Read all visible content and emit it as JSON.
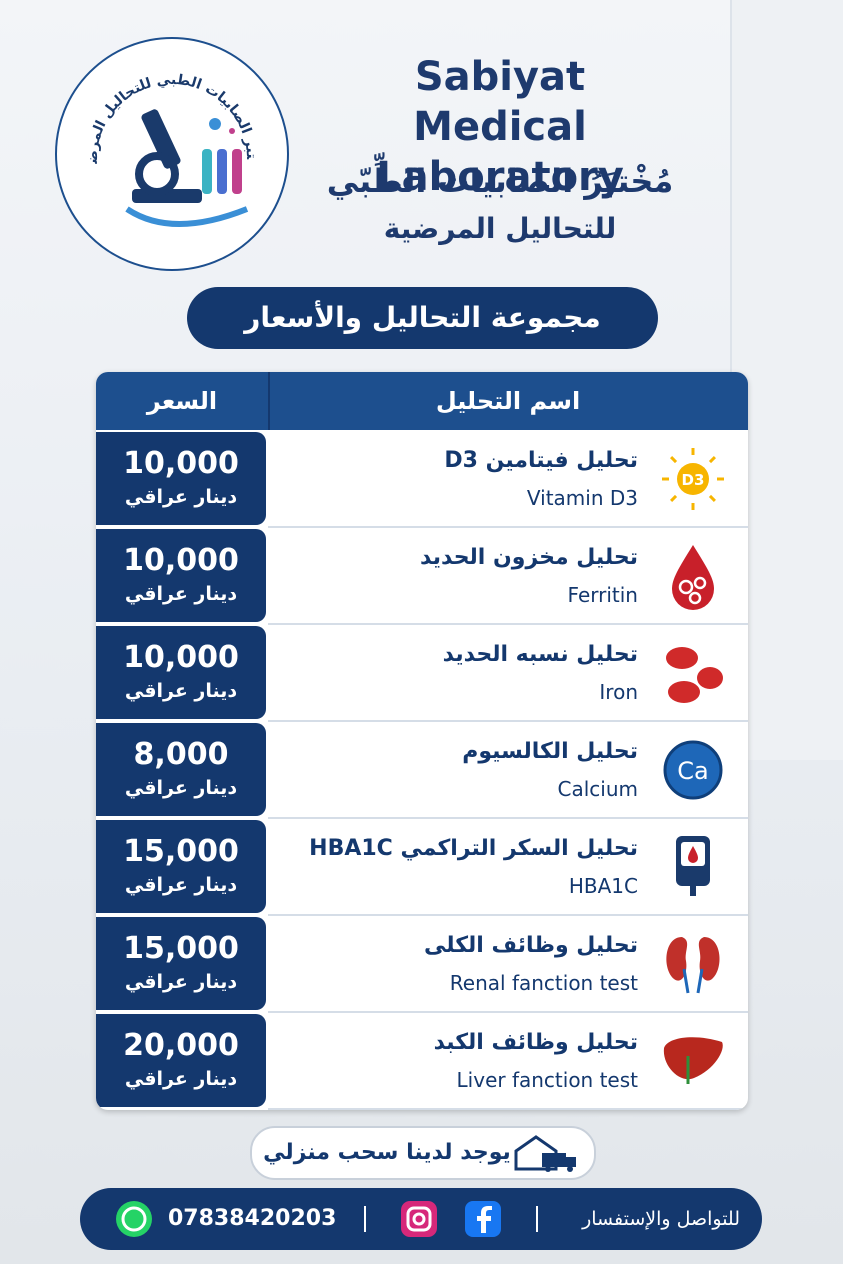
{
  "header": {
    "title_en": "Sabiyat Medical Laboratory",
    "title_ar": "مُخْتبَرُ الصابيات الطِّبّي",
    "subtitle_ar": "للتحاليل المرضية",
    "logo_text": "مختبر الصابيات الطبي للتحاليل المرضية"
  },
  "section_title": "مجموعة التحاليل والأسعار",
  "table": {
    "headers": [
      "السعر",
      "اسم التحليل"
    ],
    "rows": [
      {
        "price": "10,000",
        "currency": "دينار عراقي",
        "name_ar": "تحليل فيتامين D3",
        "name_en": "Vitamin D3",
        "icon_label": "D3"
      },
      {
        "price": "10,000",
        "currency": "دينار عراقي",
        "name_ar": "تحليل مخزون الحديد",
        "name_en": "Ferritin"
      },
      {
        "price": "10,000",
        "currency": "دينار عراقي",
        "name_ar": "تحليل نسبه الحديد",
        "name_en": "Iron"
      },
      {
        "price": "8,000",
        "currency": "دينار عراقي",
        "name_ar": "تحليل الكالسيوم",
        "name_en": "Calcium",
        "icon_label": "Ca"
      },
      {
        "price": "15,000",
        "currency": "دينار عراقي",
        "name_ar": "تحليل السكر التراكمي HBA1C",
        "name_en": "HBA1C"
      },
      {
        "price": "15,000",
        "currency": "دينار عراقي",
        "name_ar": "تحليل وظائف الكلى",
        "name_en": "Renal fanction test"
      },
      {
        "price": "20,000",
        "currency": "دينار عراقي",
        "name_ar": "تحليل وظائف الكبد",
        "name_en": "Liver fanction test"
      }
    ]
  },
  "home_service": "يوجد لدينا سحب منزلي",
  "footer": {
    "contact_label": "للتواصل والإستفسار",
    "phone": "07838420203"
  }
}
